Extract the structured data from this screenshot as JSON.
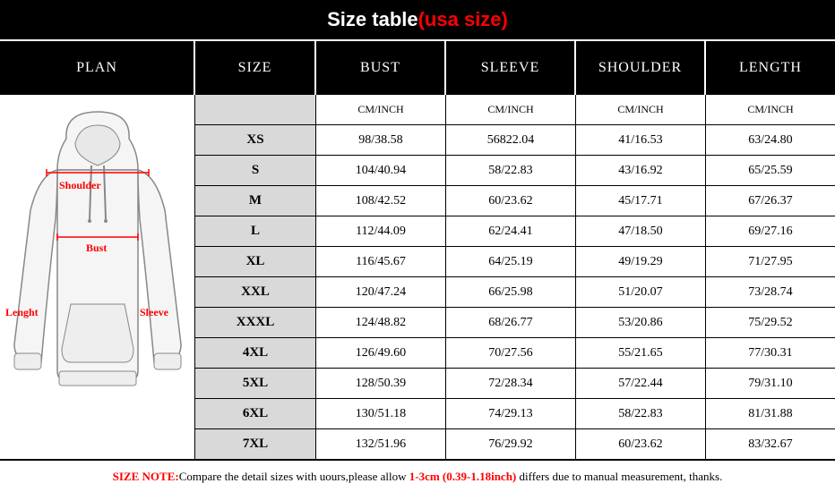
{
  "title": {
    "main": "Size table",
    "suffix": "(usa size)"
  },
  "headers": {
    "plan": "PLAN",
    "size": "SIZE",
    "bust": "BUST",
    "sleeve": "SLEEVE",
    "shoulder": "SHOULDER",
    "length": "LENGTH"
  },
  "unit": "CM/INCH",
  "hoodie_labels": {
    "shoulder": "Shoulder",
    "bust": "Bust",
    "length": "Lenght",
    "sleeve": "Sleeve"
  },
  "rows": [
    {
      "size": "XS",
      "bust": "98/38.58",
      "sleeve": "56822.04",
      "shoulder": "41/16.53",
      "length": "63/24.80"
    },
    {
      "size": "S",
      "bust": "104/40.94",
      "sleeve": "58/22.83",
      "shoulder": "43/16.92",
      "length": "65/25.59"
    },
    {
      "size": "M",
      "bust": "108/42.52",
      "sleeve": "60/23.62",
      "shoulder": "45/17.71",
      "length": "67/26.37"
    },
    {
      "size": "L",
      "bust": "112/44.09",
      "sleeve": "62/24.41",
      "shoulder": "47/18.50",
      "length": "69/27.16"
    },
    {
      "size": "XL",
      "bust": "116/45.67",
      "sleeve": "64/25.19",
      "shoulder": "49/19.29",
      "length": "71/27.95"
    },
    {
      "size": "XXL",
      "bust": "120/47.24",
      "sleeve": "66/25.98",
      "shoulder": "51/20.07",
      "length": "73/28.74"
    },
    {
      "size": "XXXL",
      "bust": "124/48.82",
      "sleeve": "68/26.77",
      "shoulder": "53/20.86",
      "length": "75/29.52"
    },
    {
      "size": "4XL",
      "bust": "126/49.60",
      "sleeve": "70/27.56",
      "shoulder": "55/21.65",
      "length": "77/30.31"
    },
    {
      "size": "5XL",
      "bust": "128/50.39",
      "sleeve": "72/28.34",
      "shoulder": "57/22.44",
      "length": "79/31.10"
    },
    {
      "size": "6XL",
      "bust": "130/51.18",
      "sleeve": "74/29.13",
      "shoulder": "58/22.83",
      "length": "81/31.88"
    },
    {
      "size": "7XL",
      "bust": "132/51.96",
      "sleeve": "76/29.92",
      "shoulder": "60/23.62",
      "length": "83/32.67"
    }
  ],
  "footer": {
    "prefix": "SIZE NOTE:",
    "mid": "Compare the detail sizes with uours,please allow ",
    "highlight": "1-3cm (0.39-1.18inch)",
    "suffix": " differs due to manual measurement, thanks."
  },
  "colors": {
    "header_bg": "#000000",
    "header_text": "#ffffff",
    "accent": "#ff0000",
    "size_col_bg": "#d9d9d9",
    "border": "#000000"
  }
}
